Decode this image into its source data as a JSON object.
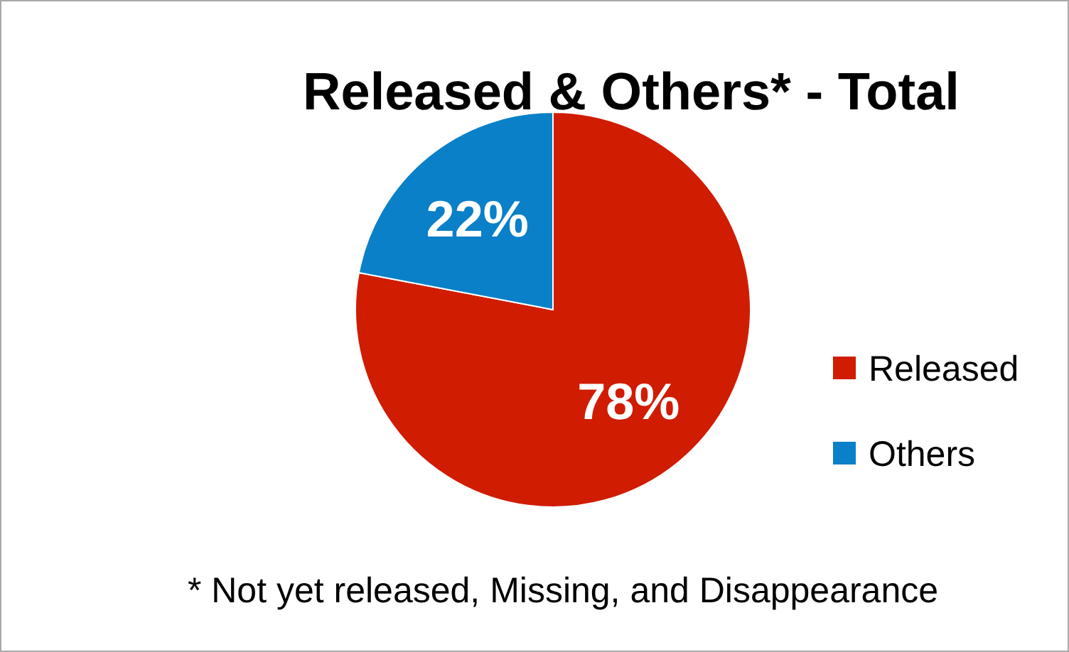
{
  "chart_data": {
    "type": "pie",
    "title": "Released & Others* - Total",
    "categories": [
      "Released",
      "Others"
    ],
    "values": [
      78,
      22
    ],
    "colors": [
      "#d01c00",
      "#0a80c8"
    ],
    "value_labels": [
      "78%",
      "22%"
    ],
    "legend": "right",
    "annotations": [
      "* Not yet released, Missing, and  Disappearance"
    ]
  }
}
